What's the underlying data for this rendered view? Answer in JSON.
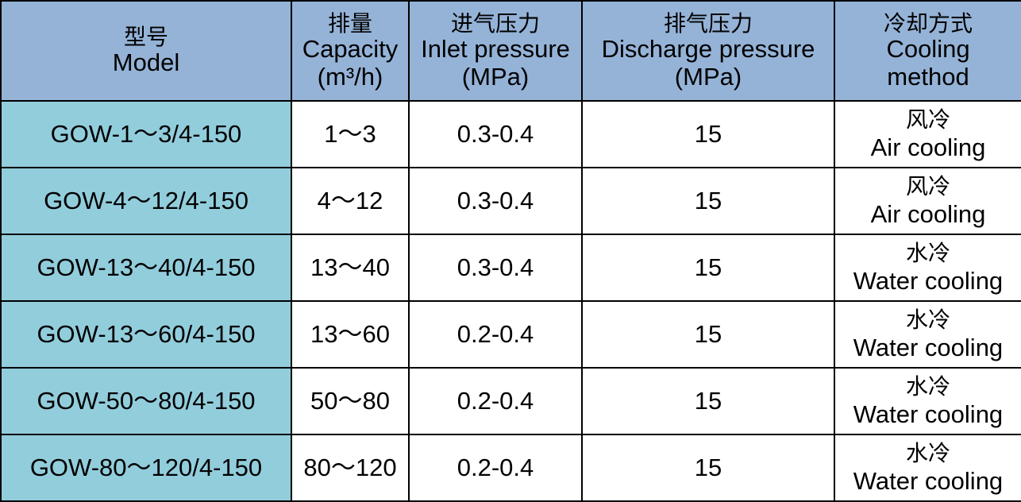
{
  "colors": {
    "header_bg": "#95b3d7",
    "model_col_bg": "#92cddc",
    "cell_bg": "#ffffff",
    "border": "#000000"
  },
  "header": {
    "model": {
      "cn": "型号",
      "en": "Model"
    },
    "capacity": {
      "cn": "排量",
      "en": "Capacity",
      "unit": "(m³/h)"
    },
    "inlet": {
      "cn": "进气压力",
      "en": "Inlet pressure",
      "unit": "(MPa)"
    },
    "discharge": {
      "cn": "排气压力",
      "en": "Discharge pressure",
      "unit": "(MPa)"
    },
    "cooling": {
      "cn": "冷却方式",
      "en1": "Cooling",
      "en2": "method"
    }
  },
  "rows": [
    {
      "model": "GOW-1～3/4-150",
      "capacity": "1～3",
      "inlet": "0.3-0.4",
      "discharge": "15",
      "cooling_cn": "风冷",
      "cooling_en": "Air cooling"
    },
    {
      "model": "GOW-4～12/4-150",
      "capacity": "4～12",
      "inlet": "0.3-0.4",
      "discharge": "15",
      "cooling_cn": "风冷",
      "cooling_en": "Air cooling"
    },
    {
      "model": "GOW-13～40/4-150",
      "capacity": "13～40",
      "inlet": "0.3-0.4",
      "discharge": "15",
      "cooling_cn": "水冷",
      "cooling_en": "Water cooling"
    },
    {
      "model": "GOW-13～60/4-150",
      "capacity": "13～60",
      "inlet": "0.2-0.4",
      "discharge": "15",
      "cooling_cn": "水冷",
      "cooling_en": "Water cooling"
    },
    {
      "model": "GOW-50～80/4-150",
      "capacity": "50～80",
      "inlet": "0.2-0.4",
      "discharge": "15",
      "cooling_cn": "水冷",
      "cooling_en": "Water cooling"
    },
    {
      "model": "GOW-80～120/4-150",
      "capacity": "80～120",
      "inlet": "0.2-0.4",
      "discharge": "15",
      "cooling_cn": "水冷",
      "cooling_en": "Water cooling"
    }
  ]
}
